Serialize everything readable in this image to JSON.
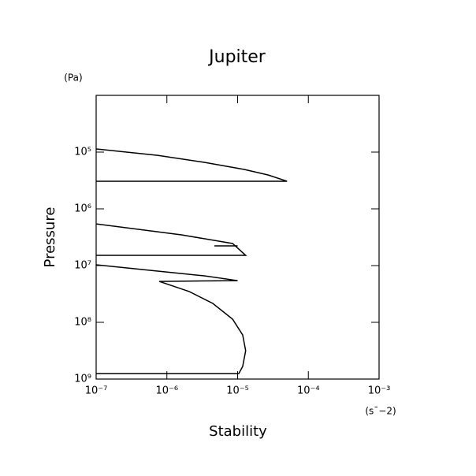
{
  "chart_data": {
    "type": "line",
    "title": "Jupiter",
    "x_label": "Stability",
    "y_label": "Pressure",
    "x_unit": "(s¯−2)",
    "y_unit": "(Pa)",
    "x_log": true,
    "y_log": true,
    "y_reversed": true,
    "xlim": [
      1e-07,
      0.001
    ],
    "ylim": [
      10000.0,
      1000000000.0
    ],
    "xticks": [
      {
        "value": 1e-07,
        "label": "10⁻⁷"
      },
      {
        "value": 1e-06,
        "label": "10⁻⁶"
      },
      {
        "value": 1e-05,
        "label": "10⁻⁵"
      },
      {
        "value": 0.0001,
        "label": "10⁻⁴"
      },
      {
        "value": 0.001,
        "label": "10⁻³"
      }
    ],
    "yticks": [
      {
        "value": 100000.0,
        "label": "10⁵"
      },
      {
        "value": 1000000.0,
        "label": "10⁶"
      },
      {
        "value": 10000000.0,
        "label": "10⁷"
      },
      {
        "value": 100000000.0,
        "label": "10⁸"
      },
      {
        "value": 1000000000.0,
        "label": "10⁹"
      }
    ],
    "x": [
      1e-07,
      7.4e-07,
      3.45e-06,
      1.24e-05,
      2.69e-05,
      5e-05,
      1e-07,
      null,
      1e-07,
      1.6e-06,
      8.5e-06,
      1.3e-05,
      1e-07,
      null,
      4.7e-06,
      1e-05,
      null,
      1e-07,
      7.4e-07,
      3.45e-06,
      1e-05,
      7.8e-07,
      2.07e-06,
      4.46e-06,
      8.5e-06,
      1.18e-05,
      1.3e-05,
      1.18e-05,
      1.04e-05,
      1e-07
    ],
    "series": [
      {
        "color": "#000000",
        "values": [
          88000.0,
          114000.0,
          152000.0,
          202000.0,
          253000.0,
          326000.0,
          326000.0,
          null,
          1840000.0,
          2870000.0,
          4080000.0,
          6600000.0,
          6600000.0,
          null,
          4500000.0,
          4500000.0,
          null,
          9700000.0,
          12500000.0,
          15200000.0,
          18400000.0,
          19000000.0,
          28700000.0,
          46400000.0,
          88000000.0,
          167000000.0,
          316000000.0,
          600000000.0,
          800000000.0,
          800000000.0
        ]
      }
    ]
  }
}
